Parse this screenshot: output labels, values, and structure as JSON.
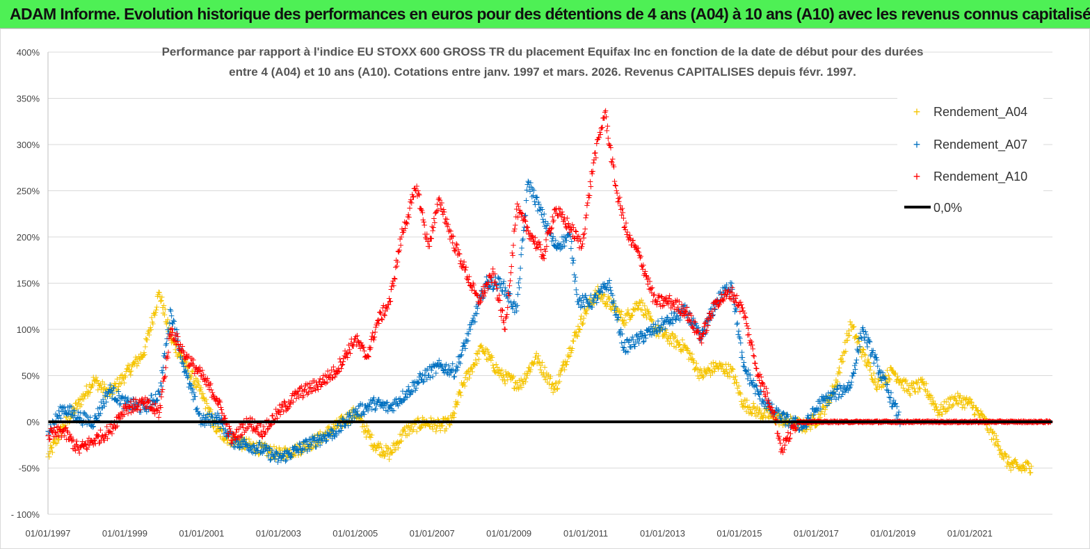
{
  "banner": {
    "title": "ADAM Informe. Evolution historique des performances en euros pour des détentions de 4 ans (A04) à 10 ans (A10) avec les revenus connus capitalisés"
  },
  "colors": {
    "banner": "#4ef055",
    "a04": "#f5c400",
    "a07": "#0070c0",
    "a10": "#ff0000",
    "zero": "#000000",
    "grid": "#d9d9d9"
  },
  "chart_data": {
    "type": "scatter",
    "title_line1": "Performance par rapport à l'indice EU STOXX 600 GROSS TR  du placement Equifax Inc en fonction de la date de début pour des durées",
    "title_line2": "entre 4 (A04) et 10 ans (A10).  Cotations entre janv. 1997 et mars. 2026. Revenus CAPITALISES depuis févr. 1997.",
    "x_range": [
      1997.0,
      2023.15
    ],
    "ylim": [
      -100,
      400
    ],
    "y_ticks": [
      -100,
      -50,
      0,
      50,
      100,
      150,
      200,
      250,
      300,
      350,
      400
    ],
    "y_tick_labels": [
      "- 100%",
      "-50%",
      "0%",
      "50%",
      "100%",
      "150%",
      "200%",
      "250%",
      "300%",
      "350%",
      "400%"
    ],
    "x_ticks": [
      1997,
      1999,
      2001,
      2003,
      2005,
      2007,
      2009,
      2011,
      2013,
      2015,
      2017,
      2019,
      2021
    ],
    "x_tick_labels": [
      "01/01/1997",
      "01/01/1999",
      "01/01/2001",
      "01/01/2003",
      "01/01/2005",
      "01/01/2007",
      "01/01/2009",
      "01/01/2011",
      "01/01/2013",
      "01/01/2015",
      "01/01/2017",
      "01/01/2019",
      "01/01/2021"
    ],
    "legend_position": "top-right",
    "series": [
      {
        "name": "Rendement_A04",
        "color": "#f5c400",
        "x": [
          1997.0,
          1997.4,
          1997.8,
          1998.2,
          1998.6,
          1999.0,
          1999.5,
          1999.9,
          2000.2,
          2000.6,
          2001.0,
          2001.4,
          2001.8,
          2002.2,
          2002.6,
          2003.0,
          2003.5,
          2004.0,
          2004.5,
          2005.0,
          2005.5,
          2005.9,
          2006.3,
          2006.8,
          2007.2,
          2007.5,
          2007.8,
          2008.3,
          2008.8,
          2009.3,
          2009.7,
          2010.2,
          2010.6,
          2011.0,
          2011.3,
          2011.7,
          2012.0,
          2012.4,
          2012.8,
          2013.2,
          2013.6,
          2014.0,
          2014.4,
          2014.8,
          2015.1,
          2015.5,
          2015.9,
          2016.3,
          2016.7,
          2017.1,
          2017.5,
          2017.9,
          2018.2,
          2018.6,
          2019.0,
          2019.4,
          2019.8,
          2020.2,
          2020.6,
          2021.0,
          2021.4,
          2021.8,
          2022.0,
          2022.3,
          2022.6
        ],
        "y": [
          -38,
          -5,
          20,
          45,
          30,
          50,
          75,
          140,
          90,
          60,
          30,
          -10,
          -20,
          -25,
          -30,
          -35,
          -30,
          -20,
          -5,
          10,
          -25,
          -35,
          -10,
          0,
          -5,
          0,
          40,
          80,
          50,
          40,
          70,
          35,
          80,
          120,
          140,
          125,
          110,
          130,
          100,
          90,
          80,
          50,
          60,
          55,
          20,
          10,
          5,
          0,
          -5,
          5,
          40,
          105,
          75,
          40,
          55,
          35,
          40,
          10,
          25,
          20,
          0,
          -30,
          -45,
          -50,
          -48
        ]
      },
      {
        "name": "Rendement_A07",
        "color": "#0070c0",
        "x": [
          1997.0,
          1997.4,
          1997.8,
          1998.2,
          1998.6,
          1999.0,
          1999.5,
          1999.9,
          2000.2,
          2000.6,
          2001.0,
          2001.4,
          2001.8,
          2002.2,
          2002.6,
          2003.0,
          2003.5,
          2004.0,
          2004.5,
          2005.0,
          2005.5,
          2005.9,
          2006.3,
          2006.8,
          2007.2,
          2007.6,
          2008.0,
          2008.4,
          2008.8,
          2009.2,
          2009.5,
          2009.8,
          2010.2,
          2010.6,
          2010.8,
          2011.2,
          2011.6,
          2012.0,
          2012.4,
          2012.8,
          2013.2,
          2013.6,
          2014.0,
          2014.4,
          2014.8,
          2015.1,
          2015.5,
          2015.9,
          2016.3,
          2016.7,
          2017.1,
          2017.5,
          2017.9,
          2018.2,
          2018.6,
          2019.0,
          2019.2
        ],
        "y": [
          -10,
          15,
          5,
          0,
          35,
          20,
          15,
          30,
          120,
          50,
          0,
          5,
          -20,
          -25,
          -30,
          -40,
          -30,
          -20,
          -10,
          10,
          20,
          15,
          30,
          50,
          60,
          55,
          100,
          150,
          150,
          120,
          260,
          230,
          190,
          200,
          130,
          130,
          150,
          80,
          90,
          100,
          110,
          120,
          90,
          130,
          150,
          60,
          30,
          10,
          0,
          -5,
          20,
          30,
          40,
          100,
          60,
          20,
          0
        ]
      },
      {
        "name": "Rendement_A10",
        "color": "#ff0000",
        "x": [
          1997.0,
          1997.4,
          1997.8,
          1998.2,
          1998.6,
          1999.0,
          1999.5,
          1999.9,
          2000.2,
          2000.6,
          2001.0,
          2001.4,
          2001.8,
          2002.2,
          2002.6,
          2003.0,
          2003.5,
          2004.0,
          2004.5,
          2005.0,
          2005.3,
          2005.6,
          2005.9,
          2006.2,
          2006.6,
          2006.9,
          2007.2,
          2007.5,
          2007.8,
          2008.2,
          2008.6,
          2008.9,
          2009.2,
          2009.6,
          2009.9,
          2010.2,
          2010.6,
          2010.9,
          2011.2,
          2011.5,
          2011.8,
          2012.1,
          2012.4,
          2012.8,
          2013.2,
          2013.6,
          2014.0,
          2014.4,
          2014.8,
          2015.1,
          2015.5,
          2015.9,
          2016.1,
          2016.5,
          2017.0,
          2018.0,
          2019.0,
          2020.0,
          2021.0,
          2022.0,
          2023.1
        ],
        "y": [
          -15,
          -10,
          -30,
          -20,
          -10,
          15,
          20,
          10,
          100,
          70,
          50,
          25,
          -20,
          0,
          -10,
          10,
          30,
          40,
          55,
          90,
          70,
          110,
          130,
          200,
          255,
          190,
          240,
          200,
          170,
          130,
          160,
          100,
          230,
          200,
          180,
          230,
          210,
          190,
          280,
          335,
          250,
          200,
          180,
          130,
          130,
          120,
          90,
          130,
          140,
          120,
          50,
          10,
          -30,
          0,
          0,
          0,
          0,
          0,
          0,
          0,
          0
        ]
      }
    ],
    "zero_line": {
      "name": "0,0%",
      "y": 0
    }
  }
}
